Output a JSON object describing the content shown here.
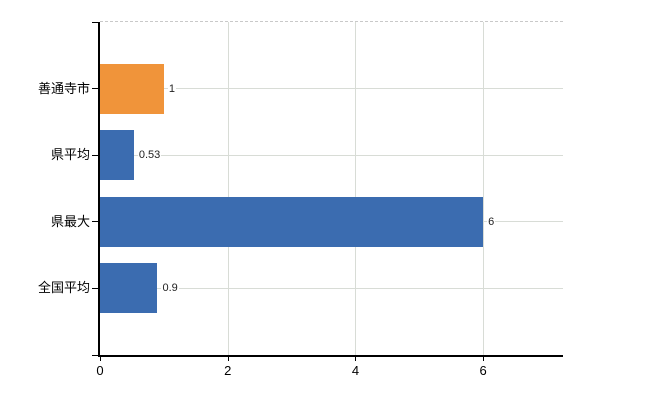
{
  "chart_data": {
    "type": "bar",
    "orientation": "horizontal",
    "title": "",
    "categories": [
      "善通寺市",
      "県平均",
      "県最大",
      "全国平均"
    ],
    "values": [
      1,
      0.53,
      6,
      0.9
    ],
    "value_labels": [
      "1",
      "0.53",
      "6",
      "0.9"
    ],
    "bar_colors": [
      "#f0943a",
      "#3b6cb0",
      "#3b6cb0",
      "#3b6cb0"
    ],
    "highlight_color": "#f0943a",
    "default_color": "#3b6cb0",
    "x_ticks": [
      0,
      2,
      4,
      6
    ],
    "x_tick_labels": [
      "0",
      "2",
      "4",
      "6"
    ],
    "xlim": [
      0,
      7.25
    ],
    "grid": true,
    "legend": false,
    "colors": {
      "grid": "#d8dcd6",
      "top_border": "#c9c9c9",
      "axis": "#000000",
      "value_text": "#222222",
      "tick_text": "#000000",
      "background": "#ffffff"
    }
  }
}
